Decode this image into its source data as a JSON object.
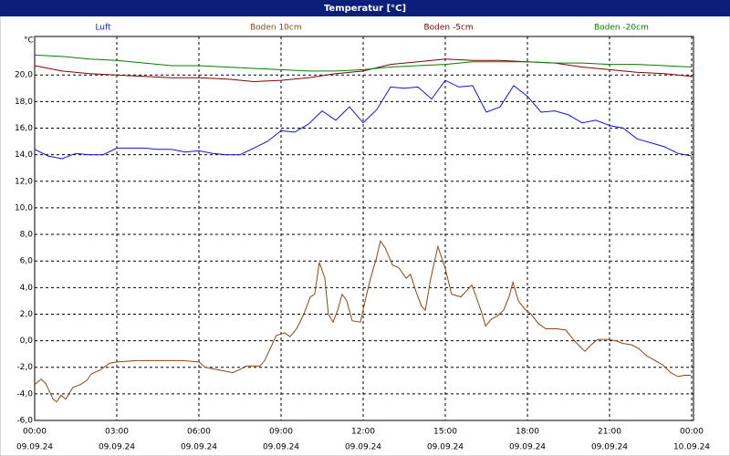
{
  "chart_data": {
    "type": "line",
    "title": "Temperatur [°C]",
    "y_label": "°C",
    "ylim": [
      -6,
      22.9
    ],
    "yticks": [
      {
        "value": -6,
        "label": "-6,0"
      },
      {
        "value": -4,
        "label": "-4,0"
      },
      {
        "value": -2,
        "label": "-2,0"
      },
      {
        "value": 0,
        "label": "0,0"
      },
      {
        "value": 2,
        "label": "2,0"
      },
      {
        "value": 4,
        "label": "4,0"
      },
      {
        "value": 6,
        "label": "6,0"
      },
      {
        "value": 8,
        "label": "8,0"
      },
      {
        "value": 10,
        "label": "10,0"
      },
      {
        "value": 12,
        "label": "12,0"
      },
      {
        "value": 14,
        "label": "14,0"
      },
      {
        "value": 16,
        "label": "16,0"
      },
      {
        "value": 18,
        "label": "18,0"
      },
      {
        "value": 20,
        "label": "20,0"
      }
    ],
    "xlim": [
      0,
      24
    ],
    "xticks": [
      {
        "value": 0,
        "label": "00:00"
      },
      {
        "value": 3,
        "label": "03:00"
      },
      {
        "value": 6,
        "label": "06:00"
      },
      {
        "value": 9,
        "label": "09:00"
      },
      {
        "value": 12,
        "label": "12:00"
      },
      {
        "value": 15,
        "label": "15:00"
      },
      {
        "value": 18,
        "label": "18:00"
      },
      {
        "value": 21,
        "label": "21:00"
      },
      {
        "value": 24,
        "label": "00:00"
      }
    ],
    "xtick_dates": [
      "09.09.24",
      "09.09.24",
      "09.09.24",
      "09.09.24",
      "09.09.24",
      "09.09.24",
      "09.09.24",
      "09.09.24",
      "10.09.24"
    ],
    "grid": true,
    "series": [
      {
        "name": "Luft",
        "color": "#1010ee",
        "x": [
          0,
          0.5,
          1,
          1.5,
          2,
          2.5,
          3,
          3.5,
          4,
          4.5,
          5,
          5.5,
          6,
          6.5,
          7,
          7.5,
          8,
          8.5,
          9,
          9.5,
          10,
          10.5,
          11,
          11.5,
          12,
          12.5,
          13,
          13.5,
          14,
          14.5,
          15,
          15.5,
          16,
          16.5,
          17,
          17.5,
          18,
          18.5,
          19,
          19.5,
          20,
          20.5,
          21,
          21.5,
          22,
          22.5,
          23,
          23.5,
          24
        ],
        "values": [
          14.4,
          13.9,
          13.7,
          14.1,
          14.0,
          14.0,
          14.5,
          14.5,
          14.5,
          14.4,
          14.4,
          14.2,
          14.3,
          14.1,
          14.0,
          14.0,
          14.5,
          15.0,
          15.8,
          15.7,
          16.3,
          17.3,
          16.6,
          17.6,
          16.4,
          17.4,
          19.1,
          19.0,
          19.1,
          18.2,
          19.6,
          19.1,
          19.2,
          17.2,
          17.6,
          19.2,
          18.4,
          17.2,
          17.3,
          17.0,
          16.4,
          16.6,
          16.2,
          16.0,
          15.2,
          14.9,
          14.6,
          14.1,
          13.9
        ]
      },
      {
        "name": "Boden 10cm",
        "color": "#8b4513",
        "x": [
          0,
          0.23,
          0.4,
          0.67,
          0.8,
          0.97,
          1.13,
          1.4,
          1.67,
          1.9,
          2.07,
          2.4,
          2.73,
          3.0,
          3.73,
          5.4,
          6.0,
          6.23,
          6.73,
          7.23,
          7.47,
          7.73,
          8.23,
          8.4,
          8.67,
          8.83,
          9.13,
          9.33,
          9.57,
          9.83,
          10.07,
          10.23,
          10.4,
          10.6,
          10.73,
          10.9,
          11.07,
          11.23,
          11.4,
          11.6,
          11.9,
          12.07,
          12.27,
          12.47,
          12.63,
          12.8,
          13.07,
          13.3,
          13.57,
          13.73,
          13.93,
          14.13,
          14.27,
          14.47,
          14.73,
          15.0,
          15.23,
          15.57,
          15.8,
          15.97,
          16.13,
          16.33,
          16.47,
          16.67,
          16.93,
          17.13,
          17.33,
          17.47,
          17.67,
          17.9,
          18.13,
          18.4,
          18.67,
          19.07,
          19.4,
          19.67,
          19.9,
          20.1,
          20.33,
          20.57,
          20.9,
          21.23,
          21.47,
          21.8,
          22.07,
          22.33,
          22.67,
          22.93,
          23.23,
          23.5,
          23.73,
          23.97
        ],
        "values": [
          -3.3,
          -2.9,
          -3.2,
          -4.4,
          -4.6,
          -4.1,
          -4.4,
          -3.5,
          -3.3,
          -3.0,
          -2.5,
          -2.2,
          -1.7,
          -1.6,
          -1.5,
          -1.5,
          -1.6,
          -2.0,
          -2.2,
          -2.4,
          -2.2,
          -1.9,
          -1.9,
          -1.5,
          -0.3,
          0.4,
          0.6,
          0.3,
          0.9,
          2.0,
          3.3,
          3.5,
          5.9,
          4.7,
          2.0,
          1.4,
          2.3,
          3.5,
          3.0,
          1.5,
          1.4,
          3.0,
          4.7,
          6.1,
          7.5,
          7.0,
          5.7,
          5.5,
          4.7,
          5.0,
          3.7,
          2.6,
          2.3,
          4.7,
          7.1,
          5.4,
          3.5,
          3.3,
          3.8,
          4.2,
          3.3,
          2.1,
          1.1,
          1.6,
          1.9,
          2.3,
          3.3,
          4.4,
          3.0,
          2.4,
          2.0,
          1.3,
          0.9,
          0.9,
          0.8,
          0.1,
          -0.4,
          -0.8,
          -0.3,
          0.1,
          0.1,
          0.0,
          -0.2,
          -0.3,
          -0.6,
          -1.1,
          -1.5,
          -1.8,
          -2.4,
          -2.7,
          -2.6,
          -2.6
        ]
      },
      {
        "name": "Boden -5cm",
        "color": "#800000",
        "x": [
          0,
          1,
          2,
          3,
          4,
          5,
          6,
          7,
          8,
          9,
          10,
          11,
          12,
          13,
          14,
          15,
          16,
          17,
          18,
          19,
          20,
          21,
          22,
          23,
          24
        ],
        "values": [
          20.7,
          20.3,
          20.1,
          20.0,
          19.9,
          19.8,
          19.8,
          19.7,
          19.5,
          19.6,
          19.8,
          20.1,
          20.3,
          20.8,
          21.0,
          21.2,
          21.1,
          21.1,
          21.0,
          20.9,
          20.6,
          20.4,
          20.2,
          20.1,
          19.9
        ]
      },
      {
        "name": "Boden -20cm",
        "color": "#008000",
        "x": [
          0,
          1,
          2,
          3,
          4,
          5,
          6,
          7,
          8,
          9,
          10,
          11,
          12,
          13,
          14,
          15,
          16,
          17,
          18,
          19,
          20,
          21,
          22,
          23,
          24
        ],
        "values": [
          21.5,
          21.4,
          21.2,
          21.1,
          20.9,
          20.7,
          20.7,
          20.6,
          20.5,
          20.4,
          20.3,
          20.3,
          20.4,
          20.6,
          20.7,
          20.8,
          21.0,
          21.0,
          21.0,
          20.9,
          20.9,
          20.8,
          20.8,
          20.7,
          20.6
        ]
      }
    ]
  }
}
